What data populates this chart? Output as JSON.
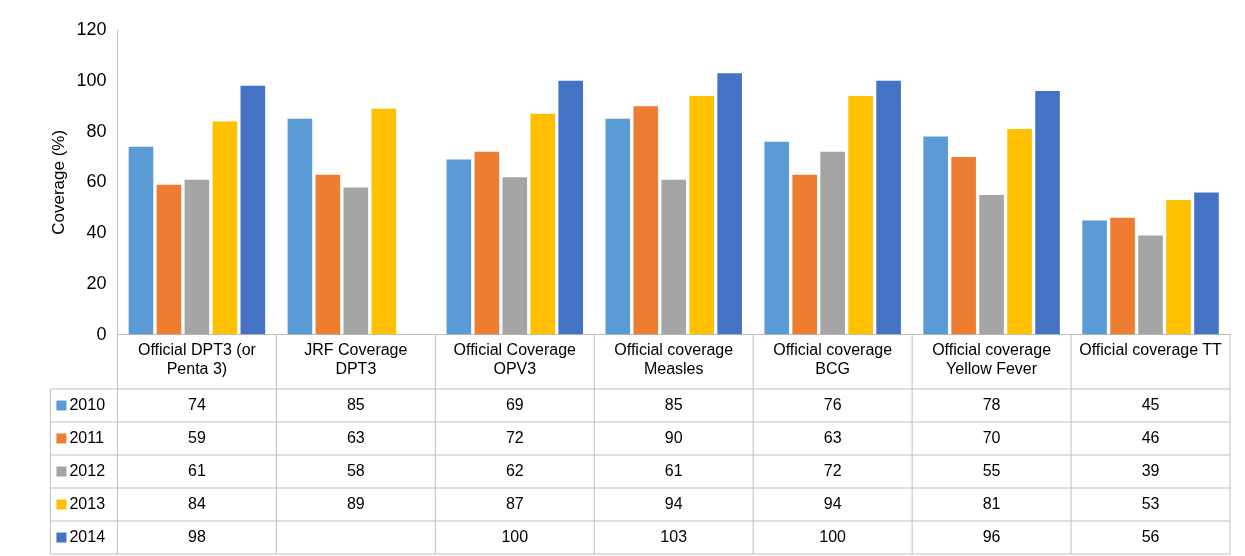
{
  "chart_data": {
    "type": "bar",
    "ylabel": "Coverage (%)",
    "categories": [
      "Official DPT3 (or Penta 3)",
      "JRF Coverage DPT3",
      "Official Coverage OPV3",
      "Official coverage Measles",
      "Official coverage BCG",
      "Official coverage Yellow Fever",
      "Official coverage TT"
    ],
    "series": [
      {
        "name": "2010",
        "color": "#5b9bd5",
        "values": [
          74,
          85,
          69,
          85,
          76,
          78,
          45
        ]
      },
      {
        "name": "2011",
        "color": "#ed7d31",
        "values": [
          59,
          63,
          72,
          90,
          63,
          70,
          46
        ]
      },
      {
        "name": "2012",
        "color": "#a5a5a5",
        "values": [
          61,
          58,
          62,
          61,
          72,
          55,
          39
        ]
      },
      {
        "name": "2013",
        "color": "#ffc000",
        "values": [
          84,
          89,
          87,
          94,
          94,
          81,
          53
        ]
      },
      {
        "name": "2014",
        "color": "#4472c4",
        "values": [
          98,
          null,
          100,
          103,
          100,
          96,
          56
        ]
      }
    ],
    "ylim": [
      0,
      120
    ],
    "yticks": [
      0,
      20,
      40,
      60,
      80,
      100,
      120
    ],
    "grid": false,
    "legend": "bottom",
    "data_labels": true
  }
}
